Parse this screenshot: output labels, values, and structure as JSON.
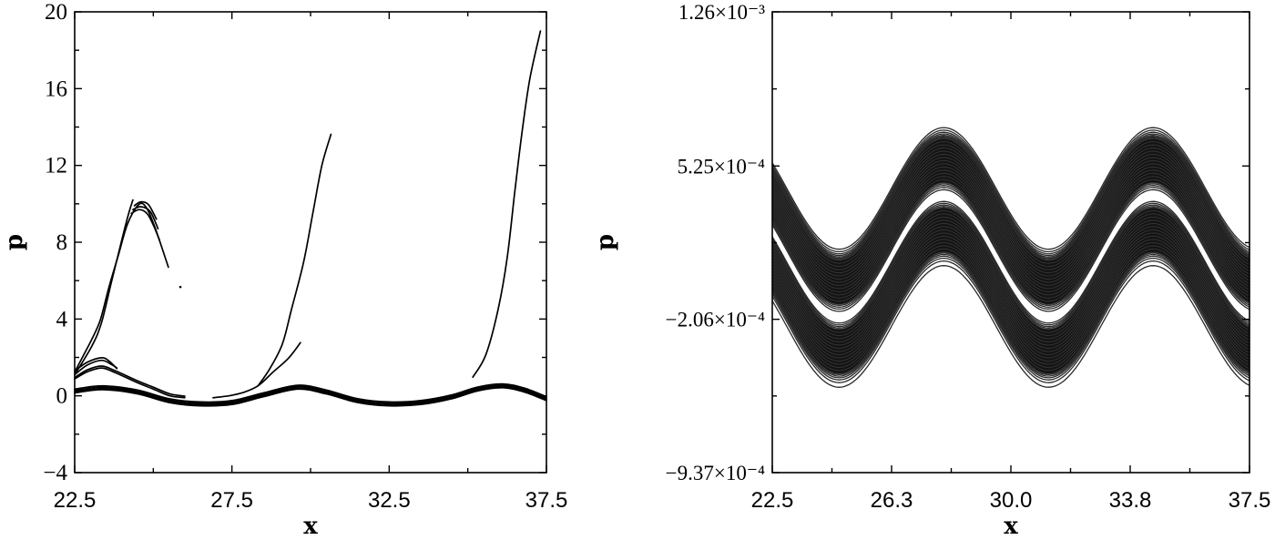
{
  "chart_data": [
    {
      "type": "line",
      "xlabel": "x",
      "ylabel": "p",
      "xlim": [
        22.5,
        37.5
      ],
      "ylim": [
        -4,
        20
      ],
      "grid": false,
      "xticks": [
        22.5,
        27.5,
        32.5,
        37.5
      ],
      "xtick_labels": [
        "22.5",
        "27.5",
        "32.5",
        "37.5"
      ],
      "xminor": [
        25,
        30,
        35
      ],
      "yticks": [
        -4,
        0,
        4,
        8,
        12,
        16,
        20
      ],
      "ytick_labels": [
        "−4",
        "0",
        "4",
        "8",
        "12",
        "16",
        "20"
      ],
      "yminor": [
        -2,
        2,
        6,
        10,
        14,
        18
      ],
      "series": [
        {
          "points": [
            [
              22.5,
              1.24
            ],
            [
              23.02,
              2.87
            ],
            [
              23.31,
              3.93
            ],
            [
              23.6,
              5.72
            ],
            [
              23.89,
              7.33
            ],
            [
              24.18,
              8.95
            ],
            [
              24.52,
              9.94
            ],
            [
              24.76,
              9.85
            ],
            [
              25.05,
              8.78
            ],
            [
              25.48,
              6.7
            ]
          ]
        },
        {
          "points": [
            [
              22.5,
              1.1
            ],
            [
              23.05,
              2.6
            ],
            [
              23.35,
              3.8
            ],
            [
              23.65,
              5.8
            ],
            [
              23.95,
              7.8
            ],
            [
              24.2,
              9.4
            ],
            [
              24.35,
              10.2
            ]
          ]
        },
        {
          "points": [
            [
              24.4,
              9.9
            ],
            [
              24.6,
              10.1
            ],
            [
              24.85,
              9.95
            ],
            [
              25.1,
              9.2
            ]
          ]
        },
        {
          "points": [
            [
              24.3,
              9.5
            ],
            [
              24.55,
              9.7
            ],
            [
              24.8,
              9.5
            ],
            [
              25.0,
              8.9
            ],
            [
              25.2,
              8.1
            ]
          ]
        },
        {
          "points": [
            [
              24.35,
              9.7
            ],
            [
              24.6,
              9.85
            ],
            [
              24.9,
              9.6
            ],
            [
              25.15,
              8.7
            ]
          ]
        },
        {
          "points": [
            [
              25.86,
              5.67
            ]
          ]
        },
        {
          "points": [
            [
              22.5,
              1.3
            ],
            [
              22.9,
              1.75
            ],
            [
              23.36,
              1.98
            ],
            [
              23.6,
              1.8
            ],
            [
              23.84,
              1.42
            ]
          ]
        },
        {
          "points": [
            [
              22.5,
              1.1
            ],
            [
              22.9,
              1.6
            ],
            [
              23.36,
              1.85
            ],
            [
              23.7,
              1.6
            ],
            [
              23.84,
              1.45
            ]
          ]
        },
        {
          "points": [
            [
              22.5,
              0.88
            ],
            [
              22.9,
              1.25
            ],
            [
              23.36,
              1.45
            ],
            [
              23.8,
              1.2
            ],
            [
              24.47,
              0.7
            ],
            [
              25.0,
              0.35
            ],
            [
              25.53,
              0.0
            ],
            [
              26.0,
              -0.1
            ]
          ]
        },
        {
          "points": [
            [
              22.5,
              0.95
            ],
            [
              22.9,
              1.35
            ],
            [
              23.36,
              1.55
            ],
            [
              23.8,
              1.3
            ],
            [
              24.47,
              0.8
            ],
            [
              25.0,
              0.45
            ],
            [
              25.53,
              0.1
            ],
            [
              26.0,
              -0.02
            ]
          ]
        },
        {
          "points": [
            [
              26.9,
              -0.1
            ],
            [
              27.4,
              0.0
            ],
            [
              27.85,
              0.17
            ],
            [
              28.33,
              0.52
            ],
            [
              28.81,
              1.24
            ],
            [
              29.3,
              1.96
            ],
            [
              29.68,
              2.77
            ]
          ]
        },
        {
          "points": [
            [
              28.33,
              0.52
            ],
            [
              28.7,
              1.4
            ],
            [
              29.1,
              2.68
            ],
            [
              29.39,
              4.47
            ],
            [
              29.78,
              6.97
            ],
            [
              30.07,
              9.49
            ],
            [
              30.36,
              12.0
            ],
            [
              30.65,
              13.62
            ]
          ]
        },
        {
          "points": [
            [
              35.16,
              0.97
            ],
            [
              35.57,
              2.13
            ],
            [
              35.96,
              4.47
            ],
            [
              36.25,
              7.16
            ],
            [
              36.49,
              10.57
            ],
            [
              36.73,
              13.8
            ],
            [
              36.97,
              16.49
            ],
            [
              37.31,
              19.0
            ]
          ]
        }
      ],
      "band": {
        "points": [
          [
            22.5,
            0.25
          ],
          [
            23.4,
            0.42
          ],
          [
            24.5,
            0.2
          ],
          [
            25.5,
            -0.25
          ],
          [
            26.5,
            -0.42
          ],
          [
            27.5,
            -0.35
          ],
          [
            28.5,
            0.05
          ],
          [
            29.6,
            0.45
          ],
          [
            30.5,
            0.2
          ],
          [
            31.5,
            -0.25
          ],
          [
            32.5,
            -0.42
          ],
          [
            33.5,
            -0.35
          ],
          [
            34.5,
            -0.05
          ],
          [
            35.3,
            0.35
          ],
          [
            36.1,
            0.52
          ],
          [
            36.8,
            0.3
          ],
          [
            37.5,
            -0.15
          ]
        ],
        "offsets": [
          -0.1,
          -0.04,
          0.03,
          0.1
        ]
      }
    },
    {
      "type": "line",
      "xlabel": "x",
      "ylabel": "p",
      "xlim": [
        22.5,
        37.5
      ],
      "ylim": [
        -0.000937,
        0.00126
      ],
      "grid": false,
      "xticks": [
        22.5,
        26.25,
        30.0,
        33.75,
        37.5
      ],
      "xtick_labels": [
        "22.5",
        "26.3",
        "30.0",
        "33.8",
        "37.5"
      ],
      "yticks": [
        0.00126,
        0.000525,
        -0.000206,
        -0.000937
      ],
      "ytick_labels": [
        "1.26×10⁻³",
        "5.25×10⁻⁴",
        "−2.06×10⁻⁴",
        "−9.37×10⁻⁴"
      ],
      "curves": {
        "amplitude": 0.00029,
        "period": 6.58,
        "peak_x": 27.89,
        "bands": [
          {
            "offsets": [
              0.000418,
              0.000406,
              0.000396,
              0.000388,
              0.000381,
              0.000375,
              0.00037,
              0.00015,
              0.000142,
              0.000133,
              0.000122
            ],
            "dense_range": [
              0.000155,
              0.000366
            ]
          },
          {
            "offsets": [
              6.6e-05,
              5.7e-05,
              4.9e-05,
              4.2e-05,
              -0.00018,
              -0.000187,
              -0.000195,
              -0.000205,
              -0.000218,
              -0.00024
            ],
            "dense_range": [
              -0.000176,
              3.7e-05
            ]
          }
        ]
      }
    }
  ]
}
